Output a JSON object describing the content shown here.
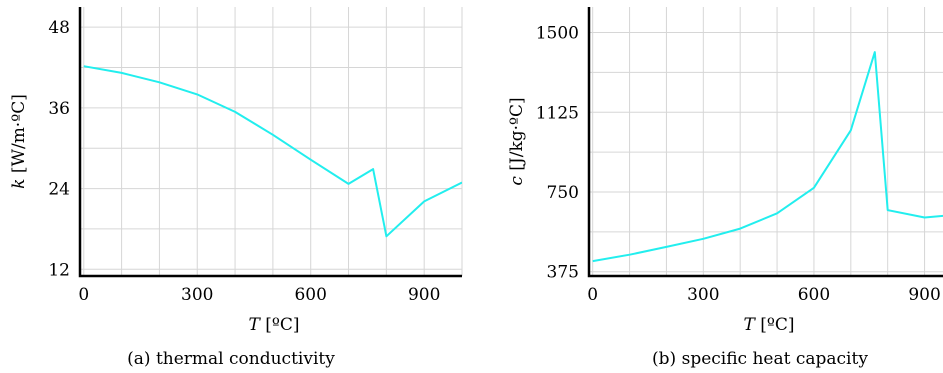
{
  "charts": [
    {
      "type": "line",
      "xlabel_var": "T",
      "xlabel_unit": " [ºC]",
      "ylabel_var": "k",
      "ylabel_unit": " [W/m·ºC]",
      "caption": "(a) thermal conductivity",
      "xlim": [
        -10,
        1000
      ],
      "ylim": [
        11,
        51
      ],
      "xticks": [
        0,
        300,
        600,
        900
      ],
      "yticks": [
        12,
        24,
        36,
        48
      ],
      "xgrid": [
        0,
        100,
        200,
        300,
        400,
        500,
        600,
        700,
        800,
        900,
        1000
      ],
      "ygrid": [
        12,
        18,
        24,
        30,
        36,
        42,
        48
      ],
      "color": "#22eeee",
      "x": [
        0,
        100,
        200,
        300,
        400,
        500,
        600,
        700,
        765,
        800,
        900,
        1000
      ],
      "y": [
        42.2,
        41.2,
        39.8,
        38.0,
        35.4,
        32.0,
        28.3,
        24.7,
        26.9,
        16.9,
        22.1,
        24.9
      ]
    },
    {
      "type": "line",
      "xlabel_var": "T",
      "xlabel_unit": " [ºC]",
      "ylabel_var": "c",
      "ylabel_unit": " [J/kg·ºC]",
      "caption": "(b) specific heat capacity",
      "xlim": [
        -10,
        950
      ],
      "ylim": [
        355,
        1620
      ],
      "xticks": [
        0,
        300,
        600,
        900
      ],
      "yticks": [
        375,
        750,
        1125,
        1500
      ],
      "xgrid": [
        0,
        100,
        200,
        300,
        400,
        500,
        600,
        700,
        800,
        900
      ],
      "ygrid": [
        375,
        562.5,
        750,
        937.5,
        1125,
        1312.5,
        1500
      ],
      "color": "#22eeee",
      "x": [
        0,
        100,
        200,
        300,
        400,
        500,
        600,
        700,
        765,
        800,
        900,
        1000
      ],
      "y": [
        425,
        455,
        492,
        530,
        578,
        650,
        770,
        1040,
        1408,
        665,
        630,
        645
      ]
    }
  ]
}
